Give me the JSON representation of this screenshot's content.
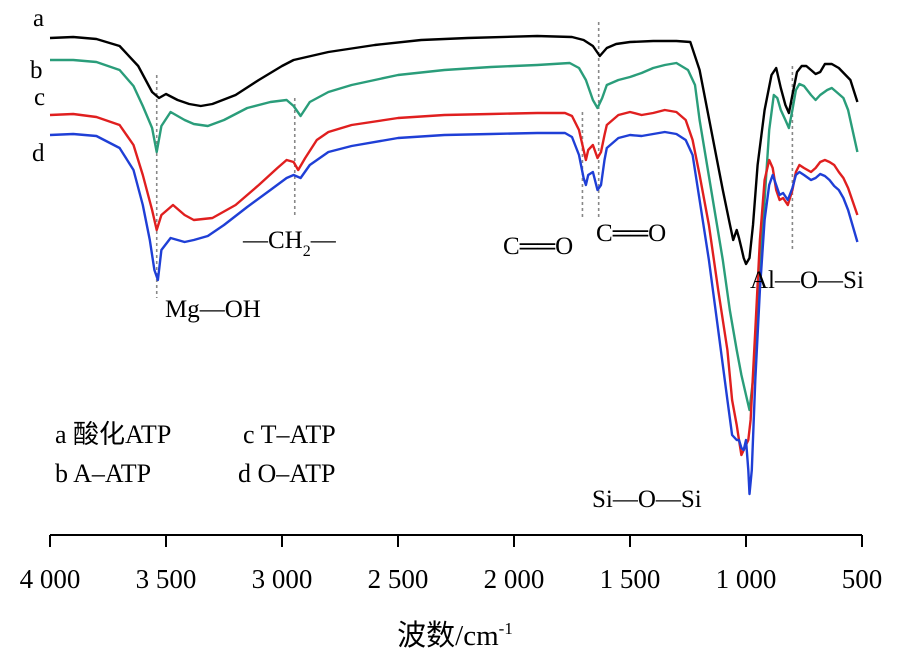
{
  "chart_data": {
    "type": "line",
    "xlabel": "波数/cm",
    "xlabel_sup": "-1",
    "x_reversed": true,
    "xlim": [
      4000,
      500
    ],
    "x_ticks": [
      4000,
      3500,
      3000,
      2500,
      2000,
      1500,
      1000,
      500
    ],
    "x_tick_labels": [
      "4 000",
      "3 500",
      "3 000",
      "2 500",
      "2 000",
      "1 500",
      "1 000",
      "500"
    ],
    "y_axis_shown": false,
    "grid": false,
    "series": [
      {
        "name": "a",
        "color": "#000000",
        "points": [
          [
            4000,
            38
          ],
          [
            3900,
            37
          ],
          [
            3800,
            39
          ],
          [
            3700,
            46
          ],
          [
            3620,
            66
          ],
          [
            3560,
            92
          ],
          [
            3530,
            98
          ],
          [
            3500,
            94
          ],
          [
            3450,
            100
          ],
          [
            3400,
            104
          ],
          [
            3350,
            106
          ],
          [
            3300,
            104
          ],
          [
            3200,
            95
          ],
          [
            3100,
            80
          ],
          [
            3000,
            66
          ],
          [
            2950,
            60
          ],
          [
            2800,
            52
          ],
          [
            2600,
            45
          ],
          [
            2400,
            40
          ],
          [
            2200,
            38
          ],
          [
            1900,
            36
          ],
          [
            1750,
            37
          ],
          [
            1700,
            40
          ],
          [
            1660,
            46
          ],
          [
            1630,
            56
          ],
          [
            1600,
            48
          ],
          [
            1560,
            44
          ],
          [
            1500,
            42
          ],
          [
            1400,
            41
          ],
          [
            1300,
            41
          ],
          [
            1240,
            42
          ],
          [
            1200,
            70
          ],
          [
            1150,
            130
          ],
          [
            1100,
            190
          ],
          [
            1070,
            224
          ],
          [
            1055,
            240
          ],
          [
            1040,
            230
          ],
          [
            1030,
            238
          ],
          [
            1020,
            248
          ],
          [
            1010,
            258
          ],
          [
            1000,
            264
          ],
          [
            985,
            258
          ],
          [
            970,
            225
          ],
          [
            950,
            165
          ],
          [
            920,
            110
          ],
          [
            890,
            75
          ],
          [
            870,
            68
          ],
          [
            850,
            88
          ],
          [
            830,
            105
          ],
          [
            815,
            113
          ],
          [
            800,
            95
          ],
          [
            780,
            72
          ],
          [
            760,
            66
          ],
          [
            740,
            66
          ],
          [
            720,
            70
          ],
          [
            700,
            74
          ],
          [
            680,
            72
          ],
          [
            660,
            64
          ],
          [
            630,
            64
          ],
          [
            600,
            68
          ],
          [
            550,
            80
          ],
          [
            520,
            102
          ]
        ]
      },
      {
        "name": "b",
        "color": "#2a9d7a",
        "points": [
          [
            4000,
            60
          ],
          [
            3900,
            60
          ],
          [
            3800,
            62
          ],
          [
            3700,
            70
          ],
          [
            3640,
            86
          ],
          [
            3600,
            106
          ],
          [
            3560,
            128
          ],
          [
            3540,
            152
          ],
          [
            3520,
            126
          ],
          [
            3480,
            112
          ],
          [
            3420,
            120
          ],
          [
            3380,
            124
          ],
          [
            3320,
            126
          ],
          [
            3250,
            120
          ],
          [
            3150,
            108
          ],
          [
            3050,
            102
          ],
          [
            2980,
            100
          ],
          [
            2950,
            106
          ],
          [
            2920,
            116
          ],
          [
            2880,
            102
          ],
          [
            2800,
            92
          ],
          [
            2700,
            85
          ],
          [
            2500,
            75
          ],
          [
            2300,
            70
          ],
          [
            2100,
            67
          ],
          [
            1900,
            65
          ],
          [
            1760,
            63
          ],
          [
            1720,
            68
          ],
          [
            1690,
            80
          ],
          [
            1660,
            100
          ],
          [
            1640,
            108
          ],
          [
            1620,
            98
          ],
          [
            1600,
            85
          ],
          [
            1550,
            80
          ],
          [
            1500,
            77
          ],
          [
            1450,
            73
          ],
          [
            1400,
            68
          ],
          [
            1350,
            65
          ],
          [
            1300,
            63
          ],
          [
            1250,
            70
          ],
          [
            1220,
            85
          ],
          [
            1200,
            120
          ],
          [
            1150,
            190
          ],
          [
            1100,
            260
          ],
          [
            1070,
            310
          ],
          [
            1040,
            350
          ],
          [
            1020,
            375
          ],
          [
            1000,
            395
          ],
          [
            985,
            410
          ],
          [
            970,
            380
          ],
          [
            950,
            300
          ],
          [
            920,
            200
          ],
          [
            900,
            130
          ],
          [
            880,
            95
          ],
          [
            865,
            98
          ],
          [
            850,
            110
          ],
          [
            830,
            120
          ],
          [
            815,
            128
          ],
          [
            800,
            110
          ],
          [
            785,
            90
          ],
          [
            770,
            84
          ],
          [
            750,
            86
          ],
          [
            720,
            95
          ],
          [
            700,
            100
          ],
          [
            680,
            95
          ],
          [
            650,
            90
          ],
          [
            630,
            88
          ],
          [
            610,
            92
          ],
          [
            580,
            98
          ],
          [
            560,
            110
          ],
          [
            520,
            152
          ]
        ]
      },
      {
        "name": "c",
        "color": "#e01f1f",
        "points": [
          [
            4000,
            115
          ],
          [
            3900,
            114
          ],
          [
            3800,
            117
          ],
          [
            3700,
            125
          ],
          [
            3640,
            145
          ],
          [
            3600,
            175
          ],
          [
            3560,
            210
          ],
          [
            3540,
            230
          ],
          [
            3520,
            215
          ],
          [
            3470,
            205
          ],
          [
            3420,
            215
          ],
          [
            3380,
            220
          ],
          [
            3300,
            218
          ],
          [
            3200,
            205
          ],
          [
            3100,
            185
          ],
          [
            3020,
            168
          ],
          [
            2980,
            160
          ],
          [
            2950,
            162
          ],
          [
            2930,
            170
          ],
          [
            2900,
            158
          ],
          [
            2850,
            140
          ],
          [
            2800,
            132
          ],
          [
            2700,
            125
          ],
          [
            2500,
            118
          ],
          [
            2300,
            115
          ],
          [
            2100,
            114
          ],
          [
            1900,
            113
          ],
          [
            1780,
            113
          ],
          [
            1750,
            116
          ],
          [
            1720,
            130
          ],
          [
            1700,
            150
          ],
          [
            1690,
            160
          ],
          [
            1680,
            150
          ],
          [
            1660,
            145
          ],
          [
            1640,
            158
          ],
          [
            1625,
            152
          ],
          [
            1610,
            135
          ],
          [
            1600,
            125
          ],
          [
            1550,
            115
          ],
          [
            1500,
            112
          ],
          [
            1450,
            115
          ],
          [
            1400,
            113
          ],
          [
            1350,
            110
          ],
          [
            1300,
            112
          ],
          [
            1260,
            120
          ],
          [
            1230,
            140
          ],
          [
            1200,
            175
          ],
          [
            1160,
            225
          ],
          [
            1120,
            290
          ],
          [
            1080,
            350
          ],
          [
            1060,
            400
          ],
          [
            1040,
            425
          ],
          [
            1030,
            440
          ],
          [
            1020,
            455
          ],
          [
            1010,
            450
          ],
          [
            1000,
            445
          ],
          [
            990,
            440
          ],
          [
            980,
            420
          ],
          [
            960,
            330
          ],
          [
            940,
            240
          ],
          [
            920,
            180
          ],
          [
            900,
            160
          ],
          [
            885,
            168
          ],
          [
            870,
            190
          ],
          [
            855,
            200
          ],
          [
            840,
            198
          ],
          [
            820,
            205
          ],
          [
            800,
            190
          ],
          [
            785,
            172
          ],
          [
            770,
            165
          ],
          [
            750,
            168
          ],
          [
            720,
            172
          ],
          [
            700,
            168
          ],
          [
            680,
            162
          ],
          [
            660,
            160
          ],
          [
            640,
            162
          ],
          [
            620,
            165
          ],
          [
            600,
            172
          ],
          [
            580,
            178
          ],
          [
            560,
            188
          ],
          [
            520,
            215
          ]
        ]
      },
      {
        "name": "d",
        "color": "#1f3fd6",
        "points": [
          [
            4000,
            135
          ],
          [
            3900,
            134
          ],
          [
            3800,
            136
          ],
          [
            3700,
            148
          ],
          [
            3640,
            170
          ],
          [
            3600,
            205
          ],
          [
            3570,
            240
          ],
          [
            3550,
            270
          ],
          [
            3535,
            280
          ],
          [
            3520,
            250
          ],
          [
            3480,
            238
          ],
          [
            3420,
            242
          ],
          [
            3380,
            240
          ],
          [
            3320,
            236
          ],
          [
            3250,
            225
          ],
          [
            3150,
            207
          ],
          [
            3050,
            190
          ],
          [
            2980,
            178
          ],
          [
            2950,
            175
          ],
          [
            2920,
            178
          ],
          [
            2880,
            165
          ],
          [
            2800,
            152
          ],
          [
            2700,
            146
          ],
          [
            2500,
            138
          ],
          [
            2300,
            135
          ],
          [
            2100,
            134
          ],
          [
            1900,
            133
          ],
          [
            1780,
            133
          ],
          [
            1750,
            137
          ],
          [
            1720,
            155
          ],
          [
            1700,
            178
          ],
          [
            1690,
            185
          ],
          [
            1680,
            175
          ],
          [
            1660,
            172
          ],
          [
            1640,
            190
          ],
          [
            1625,
            185
          ],
          [
            1610,
            160
          ],
          [
            1600,
            148
          ],
          [
            1550,
            138
          ],
          [
            1500,
            135
          ],
          [
            1450,
            136
          ],
          [
            1400,
            134
          ],
          [
            1350,
            132
          ],
          [
            1300,
            134
          ],
          [
            1260,
            140
          ],
          [
            1230,
            155
          ],
          [
            1200,
            200
          ],
          [
            1160,
            260
          ],
          [
            1120,
            330
          ],
          [
            1080,
            400
          ],
          [
            1060,
            435
          ],
          [
            1040,
            440
          ],
          [
            1030,
            440
          ],
          [
            1020,
            448
          ],
          [
            1010,
            450
          ],
          [
            1000,
            440
          ],
          [
            990,
            470
          ],
          [
            985,
            494
          ],
          [
            975,
            470
          ],
          [
            960,
            380
          ],
          [
            940,
            290
          ],
          [
            920,
            220
          ],
          [
            900,
            185
          ],
          [
            885,
            175
          ],
          [
            870,
            185
          ],
          [
            855,
            195
          ],
          [
            840,
            193
          ],
          [
            820,
            200
          ],
          [
            800,
            188
          ],
          [
            785,
            175
          ],
          [
            770,
            172
          ],
          [
            750,
            175
          ],
          [
            720,
            180
          ],
          [
            700,
            178
          ],
          [
            680,
            174
          ],
          [
            660,
            176
          ],
          [
            640,
            180
          ],
          [
            620,
            186
          ],
          [
            600,
            190
          ],
          [
            580,
            198
          ],
          [
            560,
            210
          ],
          [
            520,
            242
          ]
        ]
      }
    ],
    "curve_tags": [
      {
        "text": "a",
        "series": "a",
        "at_x": 4000
      },
      {
        "text": "b",
        "series": "b",
        "at_x": 4000
      },
      {
        "text": "c",
        "series": "c",
        "at_x": 4000
      },
      {
        "text": "d",
        "series": "d",
        "at_x": 4000
      }
    ],
    "peak_markers": [
      {
        "x": 3540,
        "from": 75,
        "to": 298
      },
      {
        "x": 2945,
        "from": 98,
        "to": 215
      },
      {
        "x": 1705,
        "from": 112,
        "to": 218
      },
      {
        "x": 1635,
        "from": 22,
        "to": 218
      },
      {
        "x": 800,
        "from": 66,
        "to": 250
      }
    ],
    "annotations": [
      {
        "id": "mg-oh",
        "text": "Mg—OH"
      },
      {
        "id": "ch2",
        "text": "—CH",
        "sub": "2",
        "tail": "—"
      },
      {
        "id": "co-1",
        "text": "C══O"
      },
      {
        "id": "co-2",
        "text": "C══O"
      },
      {
        "id": "al-o-si",
        "text": "Al—O—Si"
      },
      {
        "id": "si-o-si",
        "text": "Si—O—Si"
      }
    ],
    "legend": [
      [
        "a 酸化ATP",
        "c T–ATP"
      ],
      [
        "b A–ATP",
        "d O–ATP"
      ]
    ],
    "legend_placement": "bottom-left"
  }
}
